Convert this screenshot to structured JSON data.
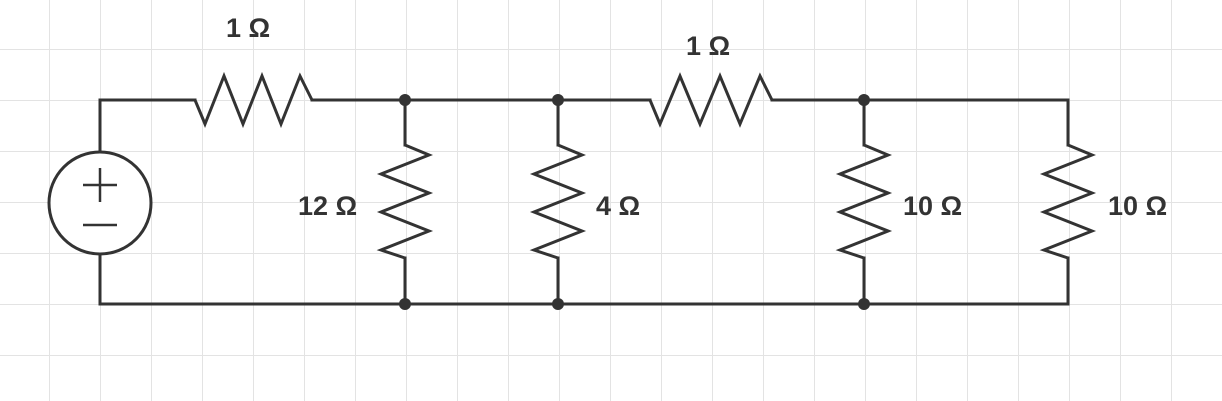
{
  "circuit": {
    "source": {
      "type": "voltage-source",
      "polarity_top": "+",
      "polarity_bottom": "−"
    },
    "resistors": [
      {
        "id": "R1",
        "label": "1 Ω",
        "orientation": "horizontal",
        "branch": "series-top-left"
      },
      {
        "id": "R2",
        "label": "12 Ω",
        "orientation": "vertical",
        "branch": "shunt-1"
      },
      {
        "id": "R3",
        "label": "4 Ω",
        "orientation": "vertical",
        "branch": "shunt-2"
      },
      {
        "id": "R4",
        "label": "1 Ω",
        "orientation": "horizontal",
        "branch": "series-top-middle"
      },
      {
        "id": "R5",
        "label": "10 Ω",
        "orientation": "vertical",
        "branch": "shunt-3"
      },
      {
        "id": "R6",
        "label": "10 Ω",
        "orientation": "vertical",
        "branch": "shunt-4"
      }
    ],
    "colors": {
      "wire": "#333333",
      "grid": "#e3e3e3",
      "background": "#ffffff"
    }
  }
}
